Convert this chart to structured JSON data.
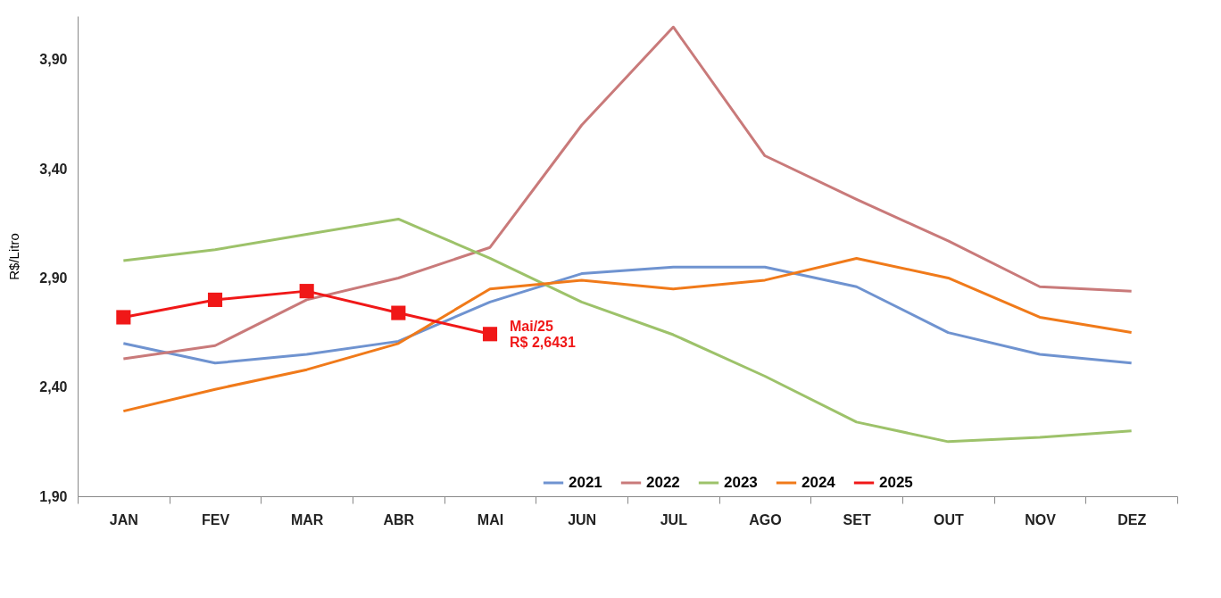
{
  "chart_data": {
    "type": "line",
    "ylabel": "R$/Litro",
    "categories": [
      "JAN",
      "FEV",
      "MAR",
      "ABR",
      "MAI",
      "JUN",
      "JUL",
      "AGO",
      "SET",
      "OUT",
      "NOV",
      "DEZ"
    ],
    "series": [
      {
        "name": "2021",
        "color": "#6f93d0",
        "values": [
          2.6,
          2.51,
          2.55,
          2.61,
          2.79,
          2.92,
          2.95,
          2.95,
          2.86,
          2.65,
          2.55,
          2.51
        ]
      },
      {
        "name": "2022",
        "color": "#c97a7a",
        "values": [
          2.53,
          2.59,
          2.8,
          2.9,
          3.04,
          3.6,
          4.05,
          3.46,
          3.26,
          3.07,
          2.86,
          2.84
        ]
      },
      {
        "name": "2023",
        "color": "#9dc26a",
        "values": [
          2.98,
          3.03,
          3.1,
          3.17,
          2.99,
          2.79,
          2.64,
          2.45,
          2.24,
          2.15,
          2.17,
          2.2
        ]
      },
      {
        "name": "2024",
        "color": "#f07a1a",
        "values": [
          2.29,
          2.39,
          2.48,
          2.6,
          2.85,
          2.89,
          2.85,
          2.89,
          2.99,
          2.9,
          2.72,
          2.65
        ]
      },
      {
        "name": "2025",
        "color": "#f01818",
        "marker": "square",
        "values": [
          2.72,
          2.8,
          2.84,
          2.74,
          2.6431,
          null,
          null,
          null,
          null,
          null,
          null,
          null
        ]
      }
    ],
    "ylim": [
      1.9,
      4.1
    ],
    "yticks": [
      {
        "value": 1.9,
        "label": "1,90"
      },
      {
        "value": 2.4,
        "label": "2,40"
      },
      {
        "value": 2.9,
        "label": "2,90"
      },
      {
        "value": 3.4,
        "label": "3,40"
      },
      {
        "value": 3.9,
        "label": "3,90"
      }
    ],
    "annotations": [
      {
        "text": "Mai/25\nR$ 2,6431",
        "x": "MAI",
        "y": 2.6431
      }
    ],
    "grid": false,
    "legend": "bottom",
    "line_style": "solid"
  }
}
